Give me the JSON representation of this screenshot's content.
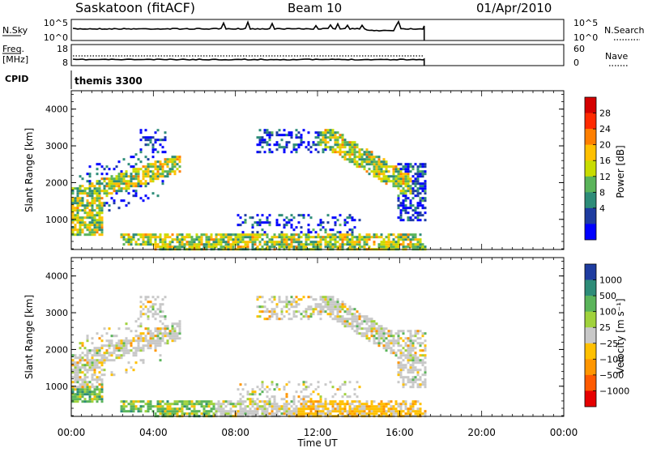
{
  "header": {
    "station": "Saskatoon (fitACF)",
    "beam": "Beam 10",
    "date": "01/Apr/2010"
  },
  "aux_panels": {
    "nsky": {
      "label": "N.Sky",
      "tick_top": "10^5",
      "tick_bottom": "10^0",
      "right_top": "10^5",
      "right_bottom": "10^0",
      "right_label": "N.Search"
    },
    "freq": {
      "label_line1": "Freq.",
      "label_line2": "[MHz]",
      "tick_top": "18",
      "tick_bottom": "8",
      "right_top": "60",
      "right_bottom": "0",
      "right_label": "Nave"
    },
    "cpid": {
      "label": "CPID",
      "program": "themis 3300"
    }
  },
  "chart_data": [
    {
      "type": "heatmap",
      "panel": "power",
      "ylabel": "Slant Range [km]",
      "xlabel": "",
      "xlim": [
        0,
        24
      ],
      "ylim": [
        180,
        4500
      ],
      "yticks": [
        1000,
        2000,
        3000,
        4000
      ],
      "data_end_hour": 17.2,
      "colorbar": {
        "label": "Power [dB]",
        "ticks": [
          "28",
          "24",
          "20",
          "16",
          "12",
          "8",
          "4"
        ],
        "colors": [
          "#d40000",
          "#ff2a00",
          "#ff7f00",
          "#ffc000",
          "#c8dc00",
          "#5ab45a",
          "#2d8c78",
          "#1e3ca0",
          "#0000ff"
        ]
      }
    },
    {
      "type": "heatmap",
      "panel": "velocity",
      "ylabel": "Slant Range [km]",
      "xlabel": "Time UT",
      "xlim": [
        0,
        24
      ],
      "ylim": [
        180,
        4500
      ],
      "yticks": [
        1000,
        2000,
        3000,
        4000
      ],
      "xticks": [
        "00:00",
        "04:00",
        "08:00",
        "12:00",
        "16:00",
        "20:00",
        "00:00"
      ],
      "data_end_hour": 17.2,
      "colorbar": {
        "label": "Velocity [m s⁻¹]",
        "ticks": [
          "1000",
          "500",
          "100",
          "25",
          "−25",
          "−100",
          "−500",
          "−1000"
        ],
        "colors": [
          "#1e3ca0",
          "#2d8c78",
          "#5ab45a",
          "#a0d23c",
          "#c8c8c8",
          "#ffc000",
          "#ff9600",
          "#ff5a00",
          "#e60000"
        ]
      }
    }
  ]
}
